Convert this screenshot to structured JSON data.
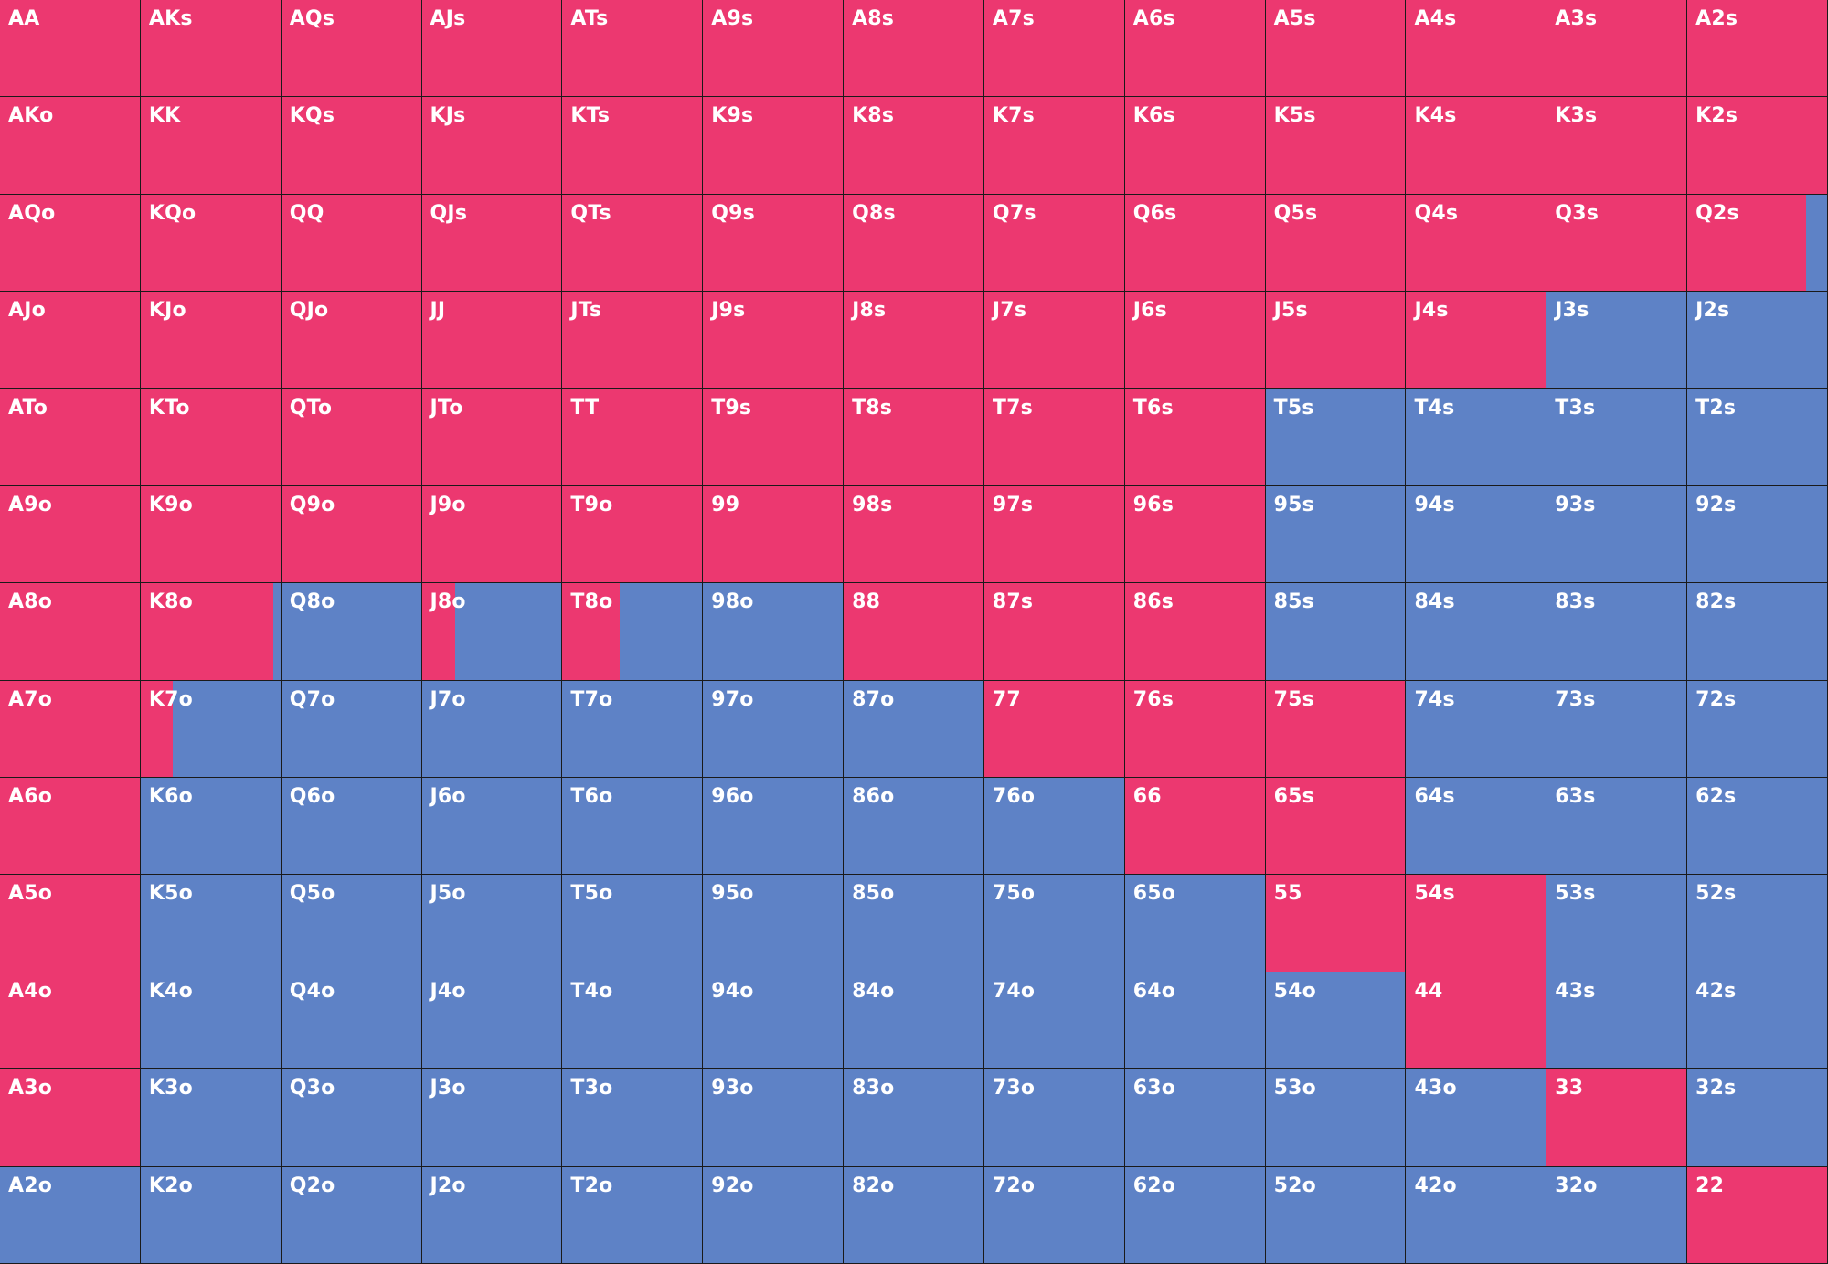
{
  "colors": {
    "raise": "#ec3870",
    "fold": "#5e82c6",
    "border": "#1a1a1a"
  },
  "rows": [
    [
      {
        "label": "AA",
        "raise": 1.0
      },
      {
        "label": "AKs",
        "raise": 1.0
      },
      {
        "label": "AQs",
        "raise": 1.0
      },
      {
        "label": "AJs",
        "raise": 1.0
      },
      {
        "label": "ATs",
        "raise": 1.0
      },
      {
        "label": "A9s",
        "raise": 1.0
      },
      {
        "label": "A8s",
        "raise": 1.0
      },
      {
        "label": "A7s",
        "raise": 1.0
      },
      {
        "label": "A6s",
        "raise": 1.0
      },
      {
        "label": "A5s",
        "raise": 1.0
      },
      {
        "label": "A4s",
        "raise": 1.0
      },
      {
        "label": "A3s",
        "raise": 1.0
      },
      {
        "label": "A2s",
        "raise": 1.0
      }
    ],
    [
      {
        "label": "AKo",
        "raise": 1.0
      },
      {
        "label": "KK",
        "raise": 1.0
      },
      {
        "label": "KQs",
        "raise": 1.0
      },
      {
        "label": "KJs",
        "raise": 1.0
      },
      {
        "label": "KTs",
        "raise": 1.0
      },
      {
        "label": "K9s",
        "raise": 1.0
      },
      {
        "label": "K8s",
        "raise": 1.0
      },
      {
        "label": "K7s",
        "raise": 1.0
      },
      {
        "label": "K6s",
        "raise": 1.0
      },
      {
        "label": "K5s",
        "raise": 1.0
      },
      {
        "label": "K4s",
        "raise": 1.0
      },
      {
        "label": "K3s",
        "raise": 1.0
      },
      {
        "label": "K2s",
        "raise": 1.0
      }
    ],
    [
      {
        "label": "AQo",
        "raise": 1.0
      },
      {
        "label": "KQo",
        "raise": 1.0
      },
      {
        "label": "QQ",
        "raise": 1.0
      },
      {
        "label": "QJs",
        "raise": 1.0
      },
      {
        "label": "QTs",
        "raise": 1.0
      },
      {
        "label": "Q9s",
        "raise": 1.0
      },
      {
        "label": "Q8s",
        "raise": 1.0
      },
      {
        "label": "Q7s",
        "raise": 1.0
      },
      {
        "label": "Q6s",
        "raise": 1.0
      },
      {
        "label": "Q5s",
        "raise": 1.0
      },
      {
        "label": "Q4s",
        "raise": 1.0
      },
      {
        "label": "Q3s",
        "raise": 1.0
      },
      {
        "label": "Q2s",
        "raise": 0.85
      }
    ],
    [
      {
        "label": "AJo",
        "raise": 1.0
      },
      {
        "label": "KJo",
        "raise": 1.0
      },
      {
        "label": "QJo",
        "raise": 1.0
      },
      {
        "label": "JJ",
        "raise": 1.0
      },
      {
        "label": "JTs",
        "raise": 1.0
      },
      {
        "label": "J9s",
        "raise": 1.0
      },
      {
        "label": "J8s",
        "raise": 1.0
      },
      {
        "label": "J7s",
        "raise": 1.0
      },
      {
        "label": "J6s",
        "raise": 1.0
      },
      {
        "label": "J5s",
        "raise": 1.0
      },
      {
        "label": "J4s",
        "raise": 1.0
      },
      {
        "label": "J3s",
        "raise": 0.0
      },
      {
        "label": "J2s",
        "raise": 0.0
      }
    ],
    [
      {
        "label": "ATo",
        "raise": 1.0
      },
      {
        "label": "KTo",
        "raise": 1.0
      },
      {
        "label": "QTo",
        "raise": 1.0
      },
      {
        "label": "JTo",
        "raise": 1.0
      },
      {
        "label": "TT",
        "raise": 1.0
      },
      {
        "label": "T9s",
        "raise": 1.0
      },
      {
        "label": "T8s",
        "raise": 1.0
      },
      {
        "label": "T7s",
        "raise": 1.0
      },
      {
        "label": "T6s",
        "raise": 1.0
      },
      {
        "label": "T5s",
        "raise": 0.0
      },
      {
        "label": "T4s",
        "raise": 0.0
      },
      {
        "label": "T3s",
        "raise": 0.0
      },
      {
        "label": "T2s",
        "raise": 0.0
      }
    ],
    [
      {
        "label": "A9o",
        "raise": 1.0
      },
      {
        "label": "K9o",
        "raise": 1.0
      },
      {
        "label": "Q9o",
        "raise": 1.0
      },
      {
        "label": "J9o",
        "raise": 1.0
      },
      {
        "label": "T9o",
        "raise": 1.0
      },
      {
        "label": "99",
        "raise": 1.0
      },
      {
        "label": "98s",
        "raise": 1.0
      },
      {
        "label": "97s",
        "raise": 1.0
      },
      {
        "label": "96s",
        "raise": 1.0
      },
      {
        "label": "95s",
        "raise": 0.0
      },
      {
        "label": "94s",
        "raise": 0.0
      },
      {
        "label": "93s",
        "raise": 0.0
      },
      {
        "label": "92s",
        "raise": 0.0
      }
    ],
    [
      {
        "label": "A8o",
        "raise": 1.0
      },
      {
        "label": "K8o",
        "raise": 0.95
      },
      {
        "label": "Q8o",
        "raise": 0.0
      },
      {
        "label": "J8o",
        "raise": 0.24
      },
      {
        "label": "T8o",
        "raise": 0.41
      },
      {
        "label": "98o",
        "raise": 0.0
      },
      {
        "label": "88",
        "raise": 1.0
      },
      {
        "label": "87s",
        "raise": 1.0
      },
      {
        "label": "86s",
        "raise": 1.0
      },
      {
        "label": "85s",
        "raise": 0.0
      },
      {
        "label": "84s",
        "raise": 0.0
      },
      {
        "label": "83s",
        "raise": 0.0
      },
      {
        "label": "82s",
        "raise": 0.0
      }
    ],
    [
      {
        "label": "A7o",
        "raise": 1.0
      },
      {
        "label": "K7o",
        "raise": 0.23
      },
      {
        "label": "Q7o",
        "raise": 0.0
      },
      {
        "label": "J7o",
        "raise": 0.0
      },
      {
        "label": "T7o",
        "raise": 0.0
      },
      {
        "label": "97o",
        "raise": 0.0
      },
      {
        "label": "87o",
        "raise": 0.0
      },
      {
        "label": "77",
        "raise": 1.0
      },
      {
        "label": "76s",
        "raise": 1.0
      },
      {
        "label": "75s",
        "raise": 1.0
      },
      {
        "label": "74s",
        "raise": 0.0
      },
      {
        "label": "73s",
        "raise": 0.0
      },
      {
        "label": "72s",
        "raise": 0.0
      }
    ],
    [
      {
        "label": "A6o",
        "raise": 1.0
      },
      {
        "label": "K6o",
        "raise": 0.0
      },
      {
        "label": "Q6o",
        "raise": 0.0
      },
      {
        "label": "J6o",
        "raise": 0.0
      },
      {
        "label": "T6o",
        "raise": 0.0
      },
      {
        "label": "96o",
        "raise": 0.0
      },
      {
        "label": "86o",
        "raise": 0.0
      },
      {
        "label": "76o",
        "raise": 0.0
      },
      {
        "label": "66",
        "raise": 1.0
      },
      {
        "label": "65s",
        "raise": 1.0
      },
      {
        "label": "64s",
        "raise": 0.0
      },
      {
        "label": "63s",
        "raise": 0.0
      },
      {
        "label": "62s",
        "raise": 0.0
      }
    ],
    [
      {
        "label": "A5o",
        "raise": 1.0
      },
      {
        "label": "K5o",
        "raise": 0.0
      },
      {
        "label": "Q5o",
        "raise": 0.0
      },
      {
        "label": "J5o",
        "raise": 0.0
      },
      {
        "label": "T5o",
        "raise": 0.0
      },
      {
        "label": "95o",
        "raise": 0.0
      },
      {
        "label": "85o",
        "raise": 0.0
      },
      {
        "label": "75o",
        "raise": 0.0
      },
      {
        "label": "65o",
        "raise": 0.0
      },
      {
        "label": "55",
        "raise": 1.0
      },
      {
        "label": "54s",
        "raise": 1.0
      },
      {
        "label": "53s",
        "raise": 0.0
      },
      {
        "label": "52s",
        "raise": 0.0
      }
    ],
    [
      {
        "label": "A4o",
        "raise": 1.0
      },
      {
        "label": "K4o",
        "raise": 0.0
      },
      {
        "label": "Q4o",
        "raise": 0.0
      },
      {
        "label": "J4o",
        "raise": 0.0
      },
      {
        "label": "T4o",
        "raise": 0.0
      },
      {
        "label": "94o",
        "raise": 0.0
      },
      {
        "label": "84o",
        "raise": 0.0
      },
      {
        "label": "74o",
        "raise": 0.0
      },
      {
        "label": "64o",
        "raise": 0.0
      },
      {
        "label": "54o",
        "raise": 0.0
      },
      {
        "label": "44",
        "raise": 1.0
      },
      {
        "label": "43s",
        "raise": 0.0
      },
      {
        "label": "42s",
        "raise": 0.0
      }
    ],
    [
      {
        "label": "A3o",
        "raise": 1.0
      },
      {
        "label": "K3o",
        "raise": 0.0
      },
      {
        "label": "Q3o",
        "raise": 0.0
      },
      {
        "label": "J3o",
        "raise": 0.0
      },
      {
        "label": "T3o",
        "raise": 0.0
      },
      {
        "label": "93o",
        "raise": 0.0
      },
      {
        "label": "83o",
        "raise": 0.0
      },
      {
        "label": "73o",
        "raise": 0.0
      },
      {
        "label": "63o",
        "raise": 0.0
      },
      {
        "label": "53o",
        "raise": 0.0
      },
      {
        "label": "43o",
        "raise": 0.0
      },
      {
        "label": "33",
        "raise": 1.0
      },
      {
        "label": "32s",
        "raise": 0.0
      }
    ],
    [
      {
        "label": "A2o",
        "raise": 0.0
      },
      {
        "label": "K2o",
        "raise": 0.0
      },
      {
        "label": "Q2o",
        "raise": 0.0
      },
      {
        "label": "J2o",
        "raise": 0.0
      },
      {
        "label": "T2o",
        "raise": 0.0
      },
      {
        "label": "92o",
        "raise": 0.0
      },
      {
        "label": "82o",
        "raise": 0.0
      },
      {
        "label": "72o",
        "raise": 0.0
      },
      {
        "label": "62o",
        "raise": 0.0
      },
      {
        "label": "52o",
        "raise": 0.0
      },
      {
        "label": "42o",
        "raise": 0.0
      },
      {
        "label": "32o",
        "raise": 0.0
      },
      {
        "label": "22",
        "raise": 1.0
      }
    ]
  ]
}
